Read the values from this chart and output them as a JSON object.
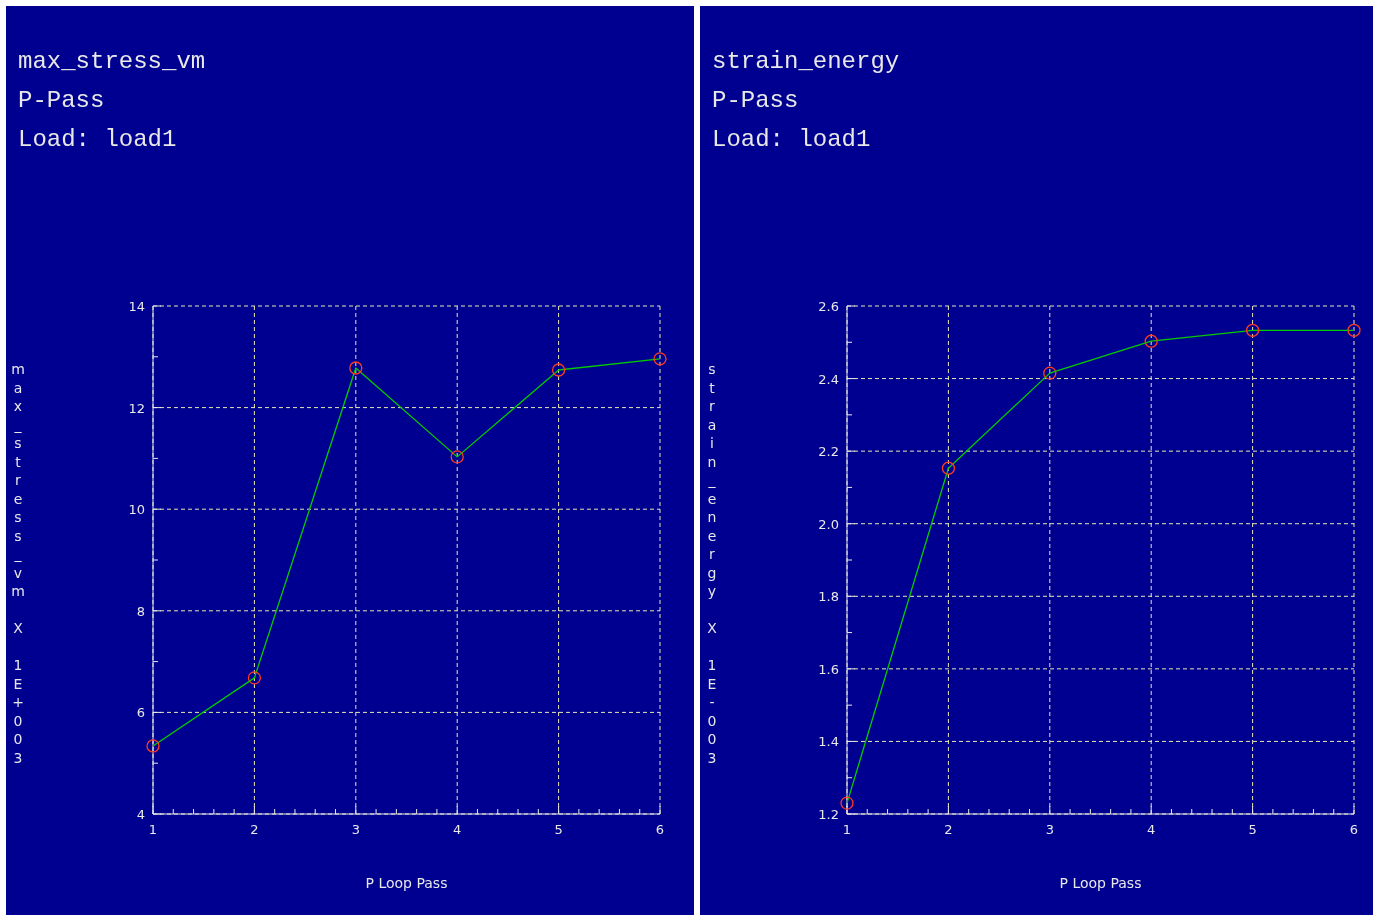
{
  "chart_data": [
    {
      "type": "line",
      "title": "max_stress_vm",
      "subtitle": "P-Pass",
      "annotations": [
        "Load: load1"
      ],
      "xlabel": "P Loop Pass",
      "ylabel": "max_stress_vm X 1E+003",
      "x": [
        1,
        2,
        3,
        4,
        5,
        6
      ],
      "series": [
        {
          "color": "#00cc00",
          "values": [
            5.34,
            6.68,
            12.78,
            11.03,
            12.74,
            12.96
          ]
        }
      ],
      "xlim": [
        1,
        6
      ],
      "xticks": [
        1,
        {
          "value": 1.2,
          "label": null
        },
        {
          "value": 1.4,
          "label": null
        },
        {
          "value": 1.6,
          "label": null
        },
        {
          "value": 1.8,
          "label": null
        },
        2,
        {
          "value": 2.2,
          "label": null
        },
        {
          "value": 2.4,
          "label": null
        },
        {
          "value": 2.6,
          "label": null
        },
        {
          "value": 2.8,
          "label": null
        },
        3,
        {
          "value": 3.2,
          "label": null
        },
        {
          "value": 3.4,
          "label": null
        },
        {
          "value": 3.6,
          "label": null
        },
        {
          "value": 3.8,
          "label": null
        },
        4,
        {
          "value": 4.2,
          "label": null
        },
        {
          "value": 4.4,
          "label": null
        },
        {
          "value": 4.6,
          "label": null
        },
        {
          "value": 4.8,
          "label": null
        },
        5,
        {
          "value": 5.2,
          "label": null
        },
        {
          "value": 5.4,
          "label": null
        },
        {
          "value": 5.6,
          "label": null
        },
        {
          "value": 5.8,
          "label": null
        },
        6
      ],
      "ylim": [
        4,
        14
      ],
      "yticks": [
        4,
        {
          "value": 5,
          "label": null
        },
        6,
        {
          "value": 7,
          "label": null
        },
        8,
        {
          "value": 9,
          "label": null
        },
        10,
        {
          "value": 11,
          "label": null
        },
        12,
        {
          "value": 13,
          "label": null
        },
        14
      ],
      "grid": true,
      "marker": "circle",
      "line_style": "solid"
    },
    {
      "type": "line",
      "title": "strain_energy",
      "subtitle": "P-Pass",
      "annotations": [
        "Load: load1"
      ],
      "xlabel": "P Loop Pass",
      "ylabel": "strain_energy X 1E-003",
      "x": [
        1,
        2,
        3,
        4,
        5,
        6
      ],
      "series": [
        {
          "color": "#00cc00",
          "values": [
            1.23,
            2.153,
            2.415,
            2.503,
            2.533,
            2.533
          ]
        }
      ],
      "xlim": [
        1,
        6
      ],
      "xticks": [
        1,
        {
          "value": 1.2,
          "label": null
        },
        {
          "value": 1.4,
          "label": null
        },
        {
          "value": 1.6,
          "label": null
        },
        {
          "value": 1.8,
          "label": null
        },
        2,
        {
          "value": 2.2,
          "label": null
        },
        {
          "value": 2.4,
          "label": null
        },
        {
          "value": 2.6,
          "label": null
        },
        {
          "value": 2.8,
          "label": null
        },
        3,
        {
          "value": 3.2,
          "label": null
        },
        {
          "value": 3.4,
          "label": null
        },
        {
          "value": 3.6,
          "label": null
        },
        {
          "value": 3.8,
          "label": null
        },
        4,
        {
          "value": 4.2,
          "label": null
        },
        {
          "value": 4.4,
          "label": null
        },
        {
          "value": 4.6,
          "label": null
        },
        {
          "value": 4.8,
          "label": null
        },
        5,
        {
          "value": 5.2,
          "label": null
        },
        {
          "value": 5.4,
          "label": null
        },
        {
          "value": 5.6,
          "label": null
        },
        {
          "value": 5.8,
          "label": null
        },
        6
      ],
      "ylim": [
        1.2,
        2.6
      ],
      "yticks": [
        {
          "value": 1.2,
          "label": "1.2"
        },
        {
          "value": 1.3,
          "label": null
        },
        {
          "value": 1.4,
          "label": "1.4"
        },
        {
          "value": 1.5,
          "label": null
        },
        {
          "value": 1.6,
          "label": "1.6"
        },
        {
          "value": 1.7,
          "label": null
        },
        {
          "value": 1.8,
          "label": "1.8"
        },
        {
          "value": 1.9,
          "label": null
        },
        {
          "value": 2.0,
          "label": "2.0"
        },
        {
          "value": 2.1,
          "label": null
        },
        {
          "value": 2.2,
          "label": "2.2"
        },
        {
          "value": 2.3,
          "label": null
        },
        {
          "value": 2.4,
          "label": "2.4"
        },
        {
          "value": 2.5,
          "label": null
        },
        {
          "value": 2.6,
          "label": "2.6"
        }
      ],
      "grid": true,
      "marker": "circle",
      "line_style": "solid"
    }
  ]
}
